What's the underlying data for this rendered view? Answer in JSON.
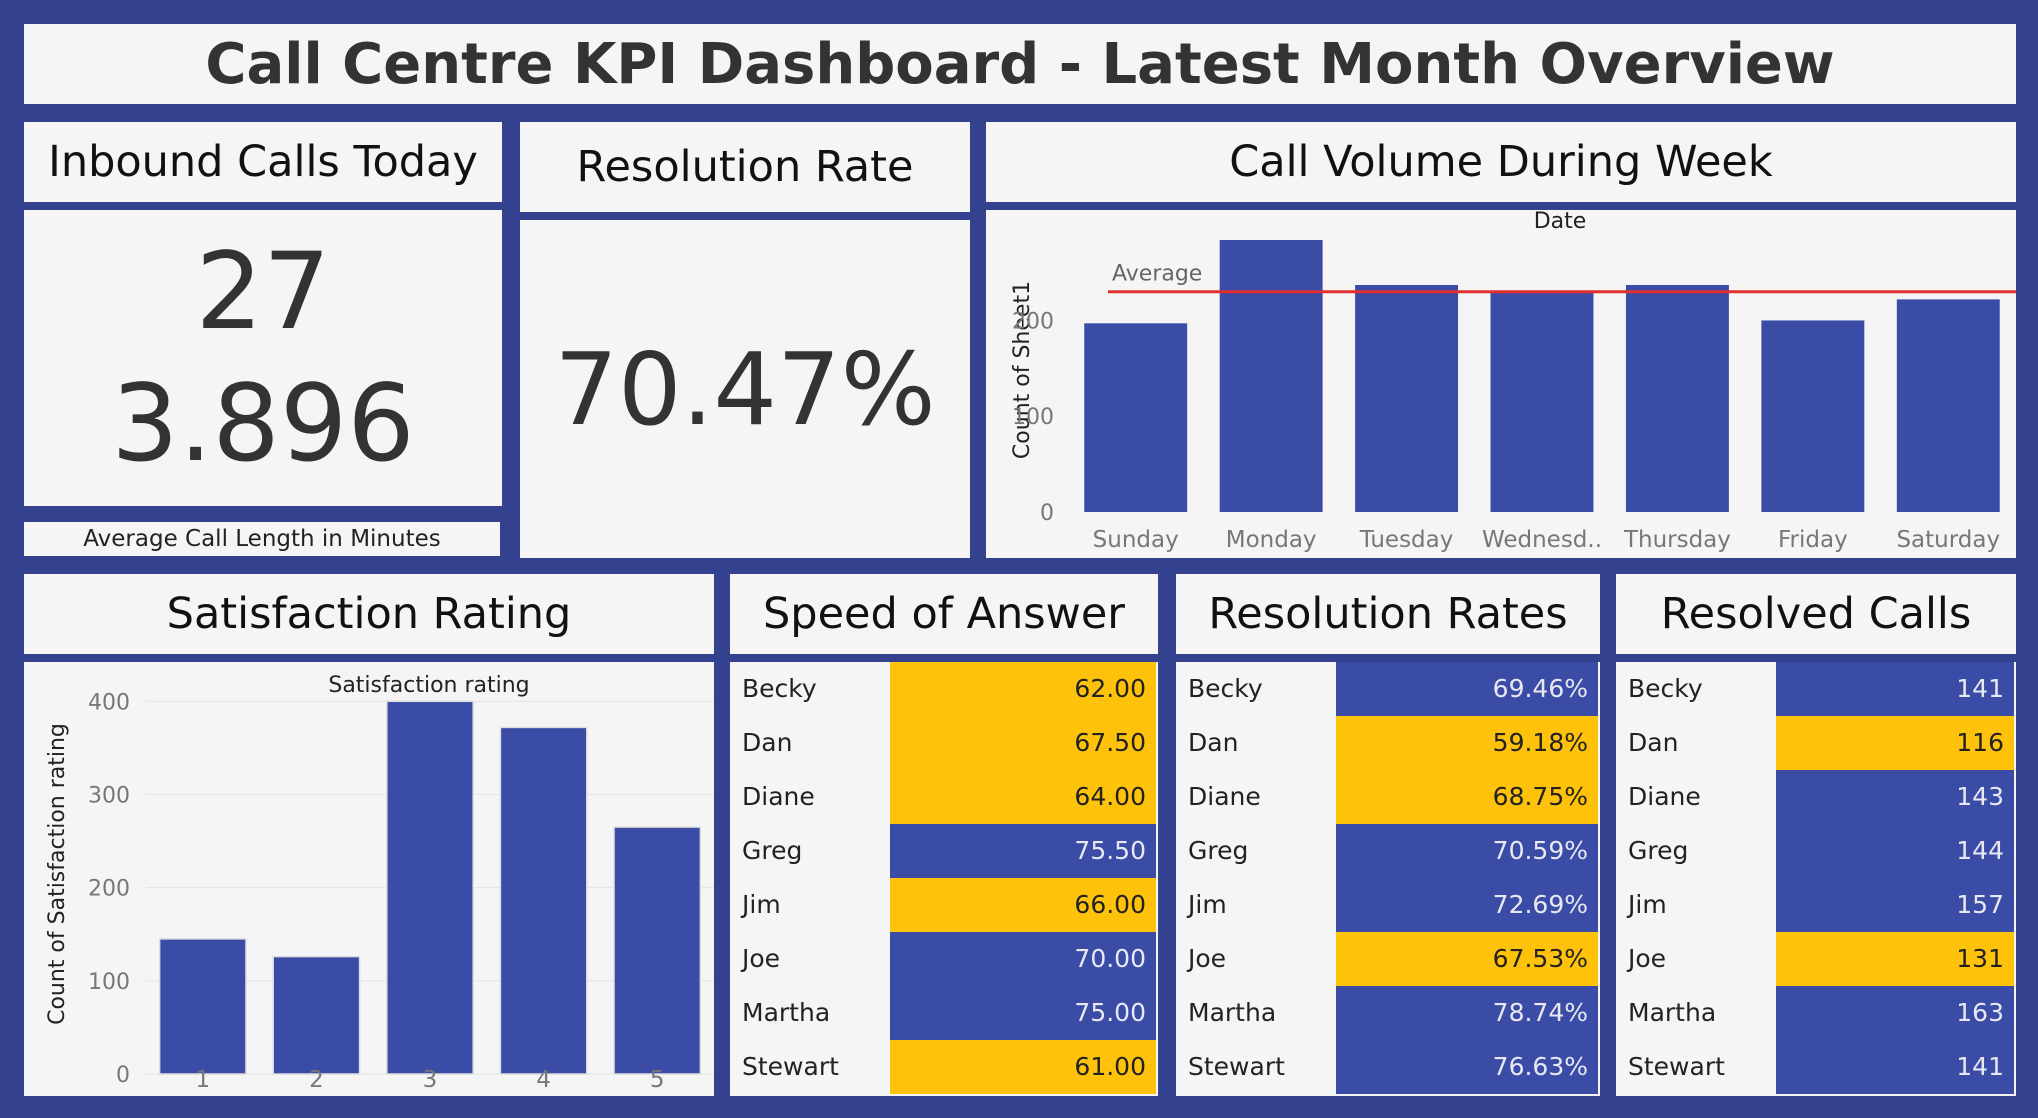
{
  "header": {
    "title": "Call Centre KPI Dashboard - Latest Month Overview"
  },
  "inbound": {
    "title": "Inbound Calls Today",
    "calls_today": "27",
    "avg_call_length": "3.896",
    "caption": "Average Call Length in Minutes"
  },
  "resolution": {
    "title": "Resolution Rate",
    "value": "70.47%"
  },
  "colors": {
    "bar": "#3a4ca6",
    "highlight": "#ffc20a",
    "average_line": "#e03030",
    "background": "#33418f",
    "panel": "#f5f5f5"
  },
  "volume": {
    "title": "Call Volume During Week",
    "chart_data": {
      "type": "bar",
      "title": "Date",
      "xlabel": "",
      "ylabel": "Count of Sheet1",
      "categories": [
        "Sunday",
        "Monday",
        "Tuesday",
        "Wednesd..",
        "Thursday",
        "Friday",
        "Saturday"
      ],
      "values": [
        197,
        284,
        237,
        231,
        237,
        200,
        222
      ],
      "ylim": [
        0,
        284
      ],
      "yticks": [
        "0",
        "100",
        "200"
      ],
      "reference_line": {
        "label": "Average",
        "value": 230
      },
      "grid": false,
      "legend": "none"
    }
  },
  "satisfaction": {
    "title": "Satisfaction Rating",
    "chart_data": {
      "type": "bar",
      "title": "Satisfaction rating",
      "xlabel": "",
      "ylabel": "Count of Satisfaction rating",
      "categories": [
        "1",
        "2",
        "3",
        "4",
        "5"
      ],
      "values": [
        145,
        126,
        400,
        372,
        265
      ],
      "ylim": [
        0,
        410
      ],
      "yticks": [
        "0",
        "100",
        "200",
        "300",
        "400"
      ],
      "grid": true,
      "legend": "none"
    }
  },
  "speed": {
    "title": "Speed of Answer",
    "rows": [
      {
        "name": "Becky",
        "value": "62.00",
        "color": "gold"
      },
      {
        "name": "Dan",
        "value": "67.50",
        "color": "gold"
      },
      {
        "name": "Diane",
        "value": "64.00",
        "color": "gold"
      },
      {
        "name": "Greg",
        "value": "75.50",
        "color": "blue"
      },
      {
        "name": "Jim",
        "value": "66.00",
        "color": "gold"
      },
      {
        "name": "Joe",
        "value": "70.00",
        "color": "blue"
      },
      {
        "name": "Martha",
        "value": "75.00",
        "color": "blue"
      },
      {
        "name": "Stewart",
        "value": "61.00",
        "color": "gold"
      }
    ]
  },
  "rates": {
    "title": "Resolution Rates",
    "rows": [
      {
        "name": "Becky",
        "value": "69.46%",
        "color": "blue"
      },
      {
        "name": "Dan",
        "value": "59.18%",
        "color": "gold"
      },
      {
        "name": "Diane",
        "value": "68.75%",
        "color": "gold"
      },
      {
        "name": "Greg",
        "value": "70.59%",
        "color": "blue"
      },
      {
        "name": "Jim",
        "value": "72.69%",
        "color": "blue"
      },
      {
        "name": "Joe",
        "value": "67.53%",
        "color": "gold"
      },
      {
        "name": "Martha",
        "value": "78.74%",
        "color": "blue"
      },
      {
        "name": "Stewart",
        "value": "76.63%",
        "color": "blue"
      }
    ]
  },
  "resolved": {
    "title": "Resolved Calls",
    "rows": [
      {
        "name": "Becky",
        "value": "141",
        "color": "blue"
      },
      {
        "name": "Dan",
        "value": "116",
        "color": "gold"
      },
      {
        "name": "Diane",
        "value": "143",
        "color": "blue"
      },
      {
        "name": "Greg",
        "value": "144",
        "color": "blue"
      },
      {
        "name": "Jim",
        "value": "157",
        "color": "blue"
      },
      {
        "name": "Joe",
        "value": "131",
        "color": "gold"
      },
      {
        "name": "Martha",
        "value": "163",
        "color": "blue"
      },
      {
        "name": "Stewart",
        "value": "141",
        "color": "blue"
      }
    ]
  }
}
